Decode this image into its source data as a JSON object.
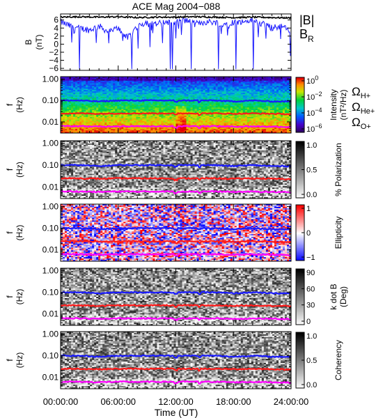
{
  "chart_data": {
    "title": "ACE Mag 2004−088",
    "xlabel": "Time (UT)",
    "x_ticks": [
      "00:00:00",
      "06:00:00",
      "12:00:00",
      "18:00:00",
      "24:00:00"
    ],
    "x_range_hours": [
      0,
      24
    ],
    "colors": {
      "total_B": "#000000",
      "B_R": "#1a1aff",
      "H+": "#1a1aff",
      "He+": "#ff1a1a",
      "O+": "#ff00ff"
    },
    "panels": [
      {
        "type": "line",
        "ylabel": "B",
        "yunit": "(nT)",
        "yticks": [
          "6",
          "4",
          "2",
          "0",
          "−2",
          "−4",
          "−6"
        ],
        "ylim": [
          -6.5,
          7.5
        ],
        "legend": [
          {
            "label": "|B|",
            "color": "#000000"
          },
          {
            "label": "B",
            "sub": "R",
            "color": "#1a1aff"
          }
        ],
        "series": [
          {
            "name": "|B|",
            "x_hours": [
              0,
              2,
              4,
              6,
              8,
              10,
              12,
              14,
              16,
              18,
              20,
              22,
              24
            ],
            "values": [
              6.7,
              6.8,
              6.7,
              6.8,
              6.6,
              6.7,
              6.7,
              6.8,
              6.7,
              6.6,
              6.7,
              6.6,
              6.5
            ]
          },
          {
            "name": "B_R",
            "x_hours": [
              0,
              1,
              2,
              3,
              4,
              5,
              6,
              7,
              8,
              9,
              10,
              11,
              12,
              13,
              14,
              15,
              16,
              17,
              18,
              19,
              20,
              21,
              22,
              23,
              24
            ],
            "values": [
              5.5,
              4.5,
              4.0,
              3.5,
              4.5,
              3.0,
              4.0,
              1.5,
              4.5,
              5.5,
              5.0,
              5.5,
              5.5,
              6.0,
              5.0,
              5.5,
              5.5,
              5.0,
              5.5,
              5.5,
              6.0,
              5.0,
              4.0,
              4.5,
              3.0
            ]
          }
        ]
      },
      {
        "type": "heatmap",
        "ylabel": "f",
        "yunit": "(Hz)",
        "yticks": [
          "1.00",
          "0.10",
          "0.01"
        ],
        "ylim": [
          0.003,
          1.3
        ],
        "yscale": "log",
        "colorscale": "rainbow",
        "colorbar_ticks": [
          {
            "base": "10",
            "exp": "0"
          },
          {
            "base": "10",
            "exp": "−2"
          },
          {
            "base": "10",
            "exp": "−4"
          },
          {
            "base": "10",
            "exp": "−6"
          }
        ],
        "colorbar_label": "Intensity",
        "colorbar_unit": "(nT²/Hz)",
        "gyro_legend": [
          {
            "label": "Ω",
            "sub": "H+",
            "color": "#1a1aff"
          },
          {
            "label": "Ω",
            "sub": "He+",
            "color": "#ff1a1a"
          },
          {
            "label": "Ω",
            "sub": "O+",
            "color": "#ff00ff"
          }
        ]
      },
      {
        "type": "heatmap",
        "ylabel": "f",
        "yunit": "(Hz)",
        "yticks": [
          "1.00",
          "0.10",
          "0.01"
        ],
        "colorscale": "gray",
        "colorbar_ticks": [
          "1.0",
          "0.5",
          "0.0"
        ],
        "colorbar_label": "% Polarization"
      },
      {
        "type": "heatmap",
        "ylabel": "f",
        "yunit": "(Hz)",
        "yticks": [
          "1.00",
          "0.10",
          "0.01"
        ],
        "colorscale": "bluewhitered",
        "colorbar_ticks": [
          "1",
          "0",
          "−1"
        ],
        "colorbar_label": "Ellipticity"
      },
      {
        "type": "heatmap",
        "ylabel": "f",
        "yunit": "(Hz)",
        "yticks": [
          "1.00",
          "0.10",
          "0.01"
        ],
        "colorscale": "gray",
        "colorbar_ticks": [
          "90",
          "60",
          "30",
          "0"
        ],
        "colorbar_label": "k dot B",
        "colorbar_unit": "(Deg)"
      },
      {
        "type": "heatmap",
        "ylabel": "f",
        "yunit": "(Hz)",
        "yticks": [
          "1.00",
          "0.10",
          "0.01"
        ],
        "colorscale": "gray",
        "colorbar_ticks": [
          "1.0",
          "0.5",
          "0.0"
        ],
        "colorbar_label": "Coherency"
      }
    ],
    "gyrofrequencies_hz": {
      "H+": [
        0.1,
        0.1,
        0.09,
        0.1,
        0.1,
        0.1,
        0.1,
        0.1,
        0.1,
        0.09,
        0.1,
        0.09,
        0.09
      ],
      "He+": [
        0.025,
        0.025,
        0.024,
        0.025,
        0.025,
        0.025,
        0.025,
        0.025,
        0.025,
        0.024,
        0.025,
        0.024,
        0.023
      ],
      "O+": [
        0.0063,
        0.0063,
        0.006,
        0.0063,
        0.0062,
        0.0063,
        0.0063,
        0.0063,
        0.0063,
        0.006,
        0.0062,
        0.006,
        0.0058
      ],
      "x_hours": [
        0,
        2,
        4,
        6,
        8,
        10,
        12,
        14,
        16,
        18,
        20,
        22,
        24
      ]
    }
  }
}
